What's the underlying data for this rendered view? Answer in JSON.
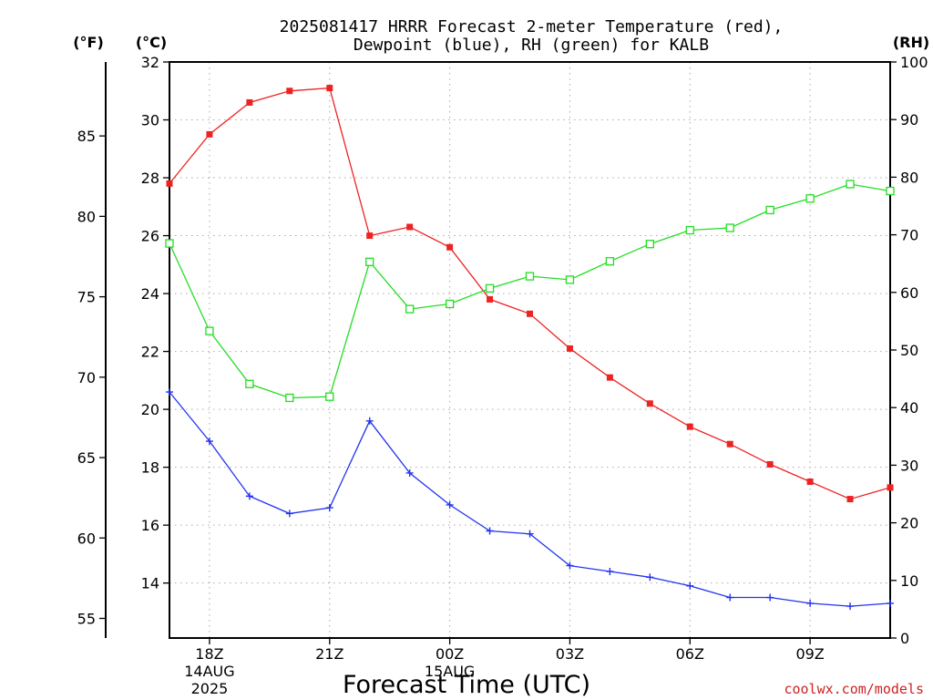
{
  "chart_data": {
    "type": "line",
    "title_line1": "2025081417 HRRR Forecast 2-meter Temperature (red),",
    "title_line2": "Dewpoint (blue), RH (green) for KALB",
    "xlabel": "Forecast Time (UTC)",
    "credit": "coolwx.com/models",
    "units": {
      "fahrenheit": "(°F)",
      "celsius": "(°C)",
      "rh": "(RH)"
    },
    "x_hours": [
      17,
      18,
      19,
      20,
      21,
      22,
      23,
      24,
      25,
      26,
      27,
      28,
      29,
      30,
      31,
      32,
      33,
      34,
      35
    ],
    "xlim": [
      17,
      35
    ],
    "x_ticks": [
      {
        "hour": 18,
        "label": "18Z",
        "date": "14AUG",
        "year": "2025"
      },
      {
        "hour": 21,
        "label": "21Z",
        "date": "",
        "year": ""
      },
      {
        "hour": 24,
        "label": "00Z",
        "date": "15AUG",
        "year": ""
      },
      {
        "hour": 27,
        "label": "03Z",
        "date": "",
        "year": ""
      },
      {
        "hour": 30,
        "label": "06Z",
        "date": "",
        "year": ""
      },
      {
        "hour": 33,
        "label": "09Z",
        "date": "",
        "year": ""
      }
    ],
    "celsius_axis": {
      "ylim": [
        12.1,
        32
      ],
      "ticks": [
        14,
        16,
        18,
        20,
        22,
        24,
        26,
        28,
        30,
        32
      ]
    },
    "fahrenheit_axis": {
      "ticks": [
        55,
        60,
        65,
        70,
        75,
        80,
        85
      ]
    },
    "rh_axis": {
      "ylim": [
        0,
        100
      ],
      "ticks": [
        0,
        10,
        20,
        30,
        40,
        50,
        60,
        70,
        80,
        90,
        100
      ]
    },
    "grid": true,
    "series": [
      {
        "name": "Temperature",
        "units": "C",
        "color": "#ee2222",
        "marker": "filled-square",
        "values": [
          27.8,
          29.5,
          30.6,
          31.0,
          31.1,
          26.0,
          26.3,
          25.6,
          23.8,
          23.3,
          22.1,
          21.1,
          20.2,
          19.4,
          18.8,
          18.1,
          17.5,
          16.9,
          17.3
        ]
      },
      {
        "name": "Dewpoint",
        "units": "C",
        "color": "#2233ee",
        "marker": "plus",
        "values": [
          20.6,
          18.9,
          17.0,
          16.4,
          16.6,
          19.6,
          17.8,
          16.7,
          15.8,
          15.7,
          14.6,
          14.4,
          14.2,
          13.9,
          13.5,
          13.5,
          13.3,
          13.2,
          13.3
        ]
      },
      {
        "name": "RH",
        "units": "%",
        "color": "#22dd22",
        "marker": "open-square",
        "values": [
          68.5,
          53.3,
          44.1,
          41.7,
          41.9,
          65.3,
          57.1,
          58.0,
          60.7,
          62.8,
          62.2,
          65.4,
          68.4,
          70.8,
          71.2,
          74.3,
          76.3,
          78.8,
          77.6
        ]
      }
    ]
  }
}
